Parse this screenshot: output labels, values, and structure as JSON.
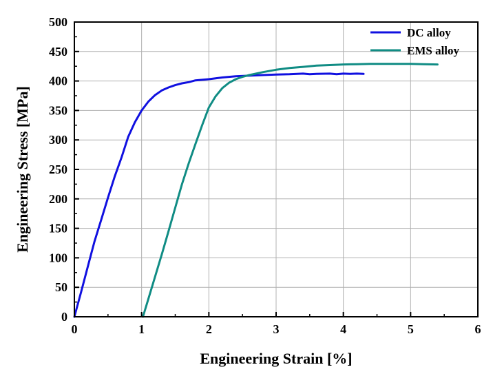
{
  "chart_data": {
    "type": "line",
    "title": "",
    "xlabel": "Engineering Strain [%]",
    "ylabel": "Engineering Stress [MPa]",
    "xlim": [
      0,
      6
    ],
    "ylim": [
      0,
      500
    ],
    "xticks": [
      "0",
      "1",
      "2",
      "3",
      "4",
      "5",
      "6"
    ],
    "yticks": [
      "0",
      "50",
      "100",
      "150",
      "200",
      "250",
      "300",
      "350",
      "400",
      "450",
      "500"
    ],
    "grid": true,
    "legend_position": "top-right",
    "series": [
      {
        "name": "DC alloy",
        "color": "#1010e0",
        "points": [
          [
            0,
            0
          ],
          [
            0.1,
            42
          ],
          [
            0.2,
            85
          ],
          [
            0.3,
            128
          ],
          [
            0.4,
            165
          ],
          [
            0.5,
            202
          ],
          [
            0.6,
            238
          ],
          [
            0.7,
            270
          ],
          [
            0.8,
            305
          ],
          [
            0.9,
            330
          ],
          [
            1.0,
            350
          ],
          [
            1.1,
            365
          ],
          [
            1.2,
            376
          ],
          [
            1.3,
            384
          ],
          [
            1.4,
            389
          ],
          [
            1.5,
            393
          ],
          [
            1.6,
            396
          ],
          [
            1.7,
            398
          ],
          [
            1.8,
            401
          ],
          [
            2.0,
            403
          ],
          [
            2.2,
            406
          ],
          [
            2.4,
            408
          ],
          [
            2.6,
            409
          ],
          [
            2.8,
            410
          ],
          [
            3.0,
            411
          ],
          [
            3.2,
            411.5
          ],
          [
            3.4,
            412.5
          ],
          [
            3.5,
            411.5
          ],
          [
            3.6,
            412
          ],
          [
            3.8,
            412.5
          ],
          [
            3.9,
            411.5
          ],
          [
            4.0,
            412.5
          ],
          [
            4.1,
            412
          ],
          [
            4.2,
            412.5
          ],
          [
            4.3,
            412
          ]
        ]
      },
      {
        "name": "EMS alloy",
        "color": "#108c84",
        "points": [
          [
            1.02,
            0
          ],
          [
            1.1,
            30
          ],
          [
            1.2,
            68
          ],
          [
            1.3,
            106
          ],
          [
            1.4,
            145
          ],
          [
            1.5,
            185
          ],
          [
            1.6,
            225
          ],
          [
            1.7,
            260
          ],
          [
            1.8,
            293
          ],
          [
            1.9,
            325
          ],
          [
            2.0,
            355
          ],
          [
            2.1,
            374
          ],
          [
            2.2,
            388
          ],
          [
            2.3,
            397
          ],
          [
            2.4,
            403
          ],
          [
            2.5,
            407
          ],
          [
            2.6,
            410
          ],
          [
            2.8,
            415
          ],
          [
            3.0,
            419
          ],
          [
            3.2,
            422
          ],
          [
            3.4,
            424
          ],
          [
            3.6,
            426
          ],
          [
            3.8,
            427
          ],
          [
            4.0,
            428
          ],
          [
            4.2,
            428.5
          ],
          [
            4.4,
            429
          ],
          [
            4.6,
            429
          ],
          [
            4.8,
            429
          ],
          [
            5.0,
            429
          ],
          [
            5.2,
            428.5
          ],
          [
            5.4,
            428
          ]
        ]
      }
    ]
  }
}
